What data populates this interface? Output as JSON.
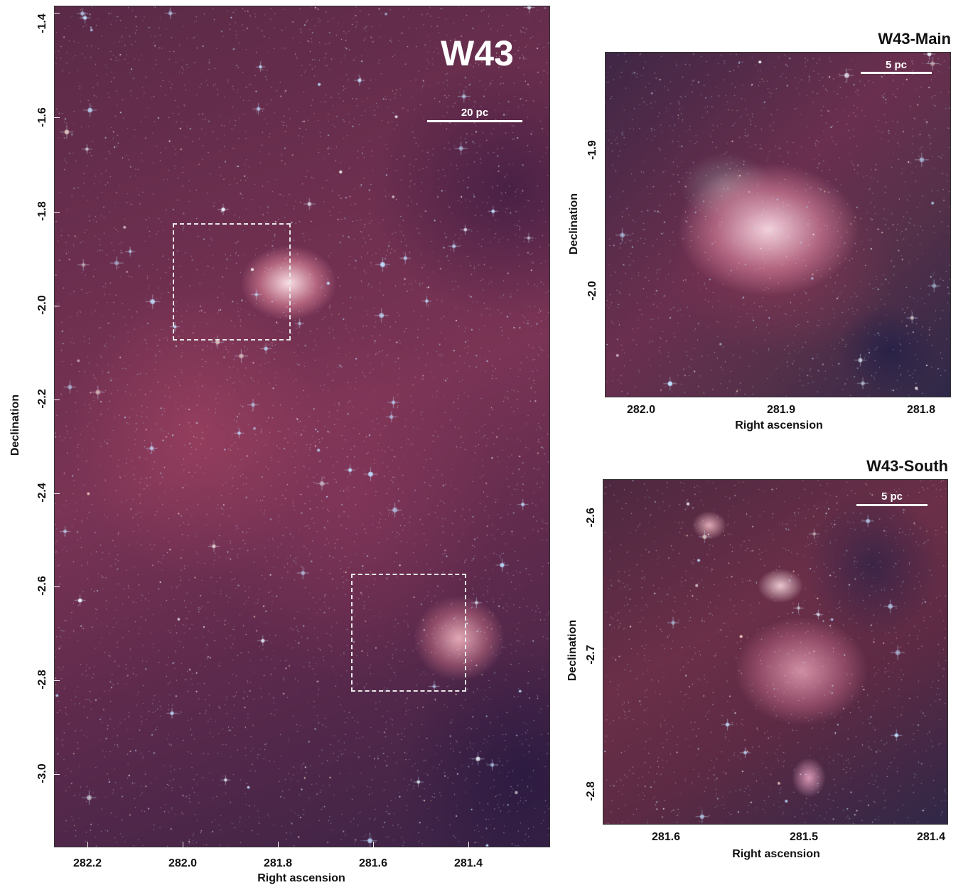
{
  "main_panel": {
    "label": "W43",
    "scalebar_label": "20 pc",
    "xlabel": "Right ascension",
    "ylabel": "Declination",
    "x_ticks": [
      "282.2",
      "282.0",
      "281.8",
      "281.6",
      "281.4"
    ],
    "y_ticks": [
      "-1.4",
      "-1.6",
      "-1.8",
      "-2.0",
      "-2.2",
      "-2.4",
      "-2.6",
      "-2.8",
      "-3.0"
    ]
  },
  "w43_main_panel": {
    "title": "W43-Main",
    "scalebar_label": "5 pc",
    "xlabel": "Right ascension",
    "ylabel": "Declination",
    "x_ticks": [
      "282.0",
      "281.9",
      "281.8"
    ],
    "y_ticks": [
      "-1.9",
      "-2.0"
    ]
  },
  "w43_south_panel": {
    "title": "W43-South",
    "scalebar_label": "5 pc",
    "xlabel": "Right ascension",
    "ylabel": "Declination",
    "x_ticks": [
      "281.6",
      "281.5",
      "281.4"
    ],
    "y_ticks": [
      "-2.6",
      "-2.7",
      "-2.8"
    ]
  },
  "colors": {
    "nebula": "#7a3455",
    "star": "#cfe6ff",
    "frame_text": "#111111"
  }
}
